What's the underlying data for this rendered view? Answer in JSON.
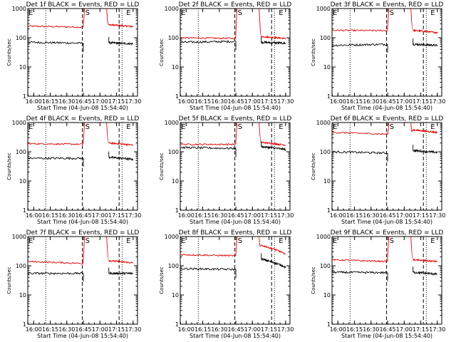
{
  "colors": {
    "background": "#ffffff",
    "events": "#000000",
    "lld": "#e00000",
    "axes": "#000000"
  },
  "chart_data": [
    {
      "type": "line",
      "title": "Det 1f BLACK = Events, RED = LLD",
      "xlabel": "Start Time (04-Jun-08 15:54:40)",
      "ylabel": "Counts/sec",
      "xticks": [
        "16:00",
        "16:15",
        "16:30",
        "16:45",
        "17:00",
        "17:15",
        "17:30"
      ],
      "yticks": [
        "1",
        "10",
        "100",
        "1000"
      ],
      "ylim": [
        1,
        1000
      ],
      "yscale": "log",
      "markers": [
        {
          "label": "E",
          "time": "15:55"
        },
        {
          "label": "S",
          "time": "16:46"
        },
        {
          "label": "E",
          "time": "17:18"
        }
      ],
      "series": [
        {
          "time_from": "15:55",
          "time_to": "16:45",
          "start": 250,
          "end": 230
        },
        {
          "time_from": "17:08",
          "time_to": "17:30",
          "start": 280,
          "end": 240
        },
        {
          "time_from": "15:55",
          "time_to": "16:45",
          "start": 70,
          "end": 65
        },
        {
          "time_from": "17:08",
          "time_to": "17:30",
          "start": 68,
          "end": 62
        }
      ]
    },
    {
      "type": "line",
      "title": "Det 2f BLACK = Events, RED = LLD",
      "xlabel": "Start Time (04-Jun-08 15:54:40)",
      "ylabel": "Counts/sec",
      "xticks": [
        "16:00",
        "16:15",
        "16:30",
        "16:45",
        "17:00",
        "17:15",
        "17:30"
      ],
      "yticks": [
        "1",
        "10",
        "100",
        "1000"
      ],
      "ylim": [
        1,
        1000
      ],
      "yscale": "log",
      "markers": [
        {
          "label": "E",
          "time": "15:55"
        },
        {
          "label": "S",
          "time": "16:46"
        },
        {
          "label": "E",
          "time": "17:18"
        }
      ],
      "series": [
        {
          "time_from": "15:55",
          "time_to": "16:45",
          "start": 100,
          "end": 95
        },
        {
          "time_from": "17:08",
          "time_to": "17:30",
          "start": 110,
          "end": 95
        },
        {
          "time_from": "15:55",
          "time_to": "16:45",
          "start": 70,
          "end": 75
        },
        {
          "time_from": "17:08",
          "time_to": "17:30",
          "start": 70,
          "end": 65
        }
      ]
    },
    {
      "type": "line",
      "title": "Det 3f BLACK = Events, RED = LLD",
      "xlabel": "Start Time (04-Jun-08 15:54:40)",
      "ylabel": "Counts/sec",
      "xticks": [
        "16:00",
        "16:15",
        "16:30",
        "16:45",
        "17:00",
        "17:15",
        "17:30"
      ],
      "yticks": [
        "1",
        "10",
        "100",
        "1000"
      ],
      "ylim": [
        1,
        1000
      ],
      "yscale": "log",
      "markers": [
        {
          "label": "E",
          "time": "15:55"
        },
        {
          "label": "S",
          "time": "16:46"
        },
        {
          "label": "E",
          "time": "17:18"
        }
      ],
      "series": [
        {
          "time_from": "15:55",
          "time_to": "16:45",
          "start": 180,
          "end": 175
        },
        {
          "time_from": "17:08",
          "time_to": "17:30",
          "start": 180,
          "end": 150
        },
        {
          "time_from": "15:55",
          "time_to": "16:45",
          "start": 55,
          "end": 60
        },
        {
          "time_from": "17:08",
          "time_to": "17:30",
          "start": 60,
          "end": 55
        }
      ]
    },
    {
      "type": "line",
      "title": "Det 4f BLACK = Events, RED = LLD",
      "xlabel": "Start Time (04-Jun-08 15:54:40)",
      "ylabel": "Counts/sec",
      "xticks": [
        "16:00",
        "16:15",
        "16:30",
        "16:45",
        "17:00",
        "17:15",
        "17:30"
      ],
      "yticks": [
        "1",
        "10",
        "100",
        "1000"
      ],
      "ylim": [
        1,
        1000
      ],
      "yscale": "log",
      "markers": [
        {
          "label": "E",
          "time": "15:55"
        },
        {
          "label": "S",
          "time": "16:46"
        },
        {
          "label": "E",
          "time": "17:18"
        }
      ],
      "series": [
        {
          "time_from": "15:55",
          "time_to": "16:45",
          "start": 190,
          "end": 180
        },
        {
          "time_from": "17:08",
          "time_to": "17:30",
          "start": 200,
          "end": 170
        },
        {
          "time_from": "15:55",
          "time_to": "16:45",
          "start": 60,
          "end": 60
        },
        {
          "time_from": "17:08",
          "time_to": "17:30",
          "start": 65,
          "end": 55
        }
      ]
    },
    {
      "type": "line",
      "title": "Det 5f BLACK = Events, RED = LLD",
      "xlabel": "Start Time (04-Jun-08 15:54:40)",
      "ylabel": "Counts/sec",
      "xticks": [
        "16:00",
        "16:15",
        "16:30",
        "16:45",
        "17:00",
        "17:15",
        "17:30"
      ],
      "yticks": [
        "1",
        "10",
        "100",
        "1000"
      ],
      "ylim": [
        1,
        1000
      ],
      "yscale": "log",
      "markers": [
        {
          "label": "E",
          "time": "15:55"
        },
        {
          "label": "S",
          "time": "16:46"
        },
        {
          "label": "E",
          "time": "17:18"
        }
      ],
      "series": [
        {
          "time_from": "15:55",
          "time_to": "16:45",
          "start": 180,
          "end": 180
        },
        {
          "time_from": "17:08",
          "time_to": "17:30",
          "start": 210,
          "end": 170
        },
        {
          "time_from": "15:55",
          "time_to": "16:45",
          "start": 140,
          "end": 130
        },
        {
          "time_from": "17:08",
          "time_to": "17:30",
          "start": 150,
          "end": 120
        }
      ]
    },
    {
      "type": "line",
      "title": "Det 6f BLACK = Events, RED = LLD",
      "xlabel": "Start Time (04-Jun-08 15:54:40)",
      "ylabel": "Counts/sec",
      "xticks": [
        "16:00",
        "16:15",
        "16:30",
        "16:45",
        "17:00",
        "17:15",
        "17:30"
      ],
      "yticks": [
        "1",
        "10",
        "100",
        "1000"
      ],
      "ylim": [
        1,
        1000
      ],
      "yscale": "log",
      "markers": [
        {
          "label": "E",
          "time": "15:55"
        },
        {
          "label": "S",
          "time": "16:46"
        },
        {
          "label": "E",
          "time": "17:18"
        }
      ],
      "series": [
        {
          "time_from": "15:55",
          "time_to": "16:45",
          "start": 460,
          "end": 400
        },
        {
          "time_from": "17:08",
          "time_to": "17:30",
          "start": 560,
          "end": 460
        },
        {
          "time_from": "15:55",
          "time_to": "16:45",
          "start": 100,
          "end": 90
        },
        {
          "time_from": "17:08",
          "time_to": "17:30",
          "start": 110,
          "end": 95
        }
      ]
    },
    {
      "type": "line",
      "title": "Det 7f BLACK = Events, RED = LLD",
      "xlabel": "Start Time (04-Jun-08 15:54:40)",
      "ylabel": "Counts/sec",
      "xticks": [
        "16:00",
        "16:15",
        "16:30",
        "16:45",
        "17:00",
        "17:15",
        "17:30"
      ],
      "yticks": [
        "1",
        "10",
        "100",
        "1000"
      ],
      "ylim": [
        1,
        1000
      ],
      "yscale": "log",
      "markers": [
        {
          "label": "E",
          "time": "15:55"
        },
        {
          "label": "S",
          "time": "16:46"
        },
        {
          "label": "E",
          "time": "17:18"
        }
      ],
      "series": [
        {
          "time_from": "15:55",
          "time_to": "16:45",
          "start": 140,
          "end": 120
        },
        {
          "time_from": "17:08",
          "time_to": "17:30",
          "start": 150,
          "end": 125
        },
        {
          "time_from": "15:55",
          "time_to": "16:45",
          "start": 55,
          "end": 55
        },
        {
          "time_from": "17:08",
          "time_to": "17:30",
          "start": 55,
          "end": 55
        }
      ]
    },
    {
      "type": "line",
      "title": "Det 8f BLACK = Events, RED = LLD",
      "xlabel": "Start Time (04-Jun-08 15:54:40)",
      "ylabel": "Counts/sec",
      "xticks": [
        "16:00",
        "16:15",
        "16:30",
        "16:45",
        "17:00",
        "17:15",
        "17:30"
      ],
      "yticks": [
        "1",
        "10",
        "100",
        "1000"
      ],
      "ylim": [
        1,
        1000
      ],
      "yscale": "log",
      "markers": [
        {
          "label": "E",
          "time": "15:55"
        },
        {
          "label": "S",
          "time": "16:46"
        },
        {
          "label": "E",
          "time": "17:18"
        }
      ],
      "series": [
        {
          "time_from": "15:55",
          "time_to": "16:45",
          "start": 240,
          "end": 220
        },
        {
          "time_from": "17:08",
          "time_to": "17:30",
          "start": 500,
          "end": 250
        },
        {
          "time_from": "15:55",
          "time_to": "16:45",
          "start": 80,
          "end": 75
        },
        {
          "time_from": "17:08",
          "time_to": "17:30",
          "start": 170,
          "end": 90
        }
      ]
    },
    {
      "type": "line",
      "title": "Det 9f BLACK = Events, RED = LLD",
      "xlabel": "Start Time (04-Jun-08 15:54:40)",
      "ylabel": "Counts/sec",
      "xticks": [
        "16:00",
        "16:15",
        "16:30",
        "16:45",
        "17:00",
        "17:15",
        "17:30"
      ],
      "yticks": [
        "1",
        "10",
        "100",
        "1000"
      ],
      "ylim": [
        1,
        1000
      ],
      "yscale": "log",
      "markers": [
        {
          "label": "E",
          "time": "15:55"
        },
        {
          "label": "S",
          "time": "16:46"
        },
        {
          "label": "E",
          "time": "17:18"
        }
      ],
      "series": [
        {
          "time_from": "15:55",
          "time_to": "16:45",
          "start": 160,
          "end": 140
        },
        {
          "time_from": "17:08",
          "time_to": "17:30",
          "start": 160,
          "end": 140
        },
        {
          "time_from": "15:55",
          "time_to": "16:45",
          "start": 60,
          "end": 58
        },
        {
          "time_from": "17:08",
          "time_to": "17:30",
          "start": 60,
          "end": 52
        }
      ]
    }
  ]
}
